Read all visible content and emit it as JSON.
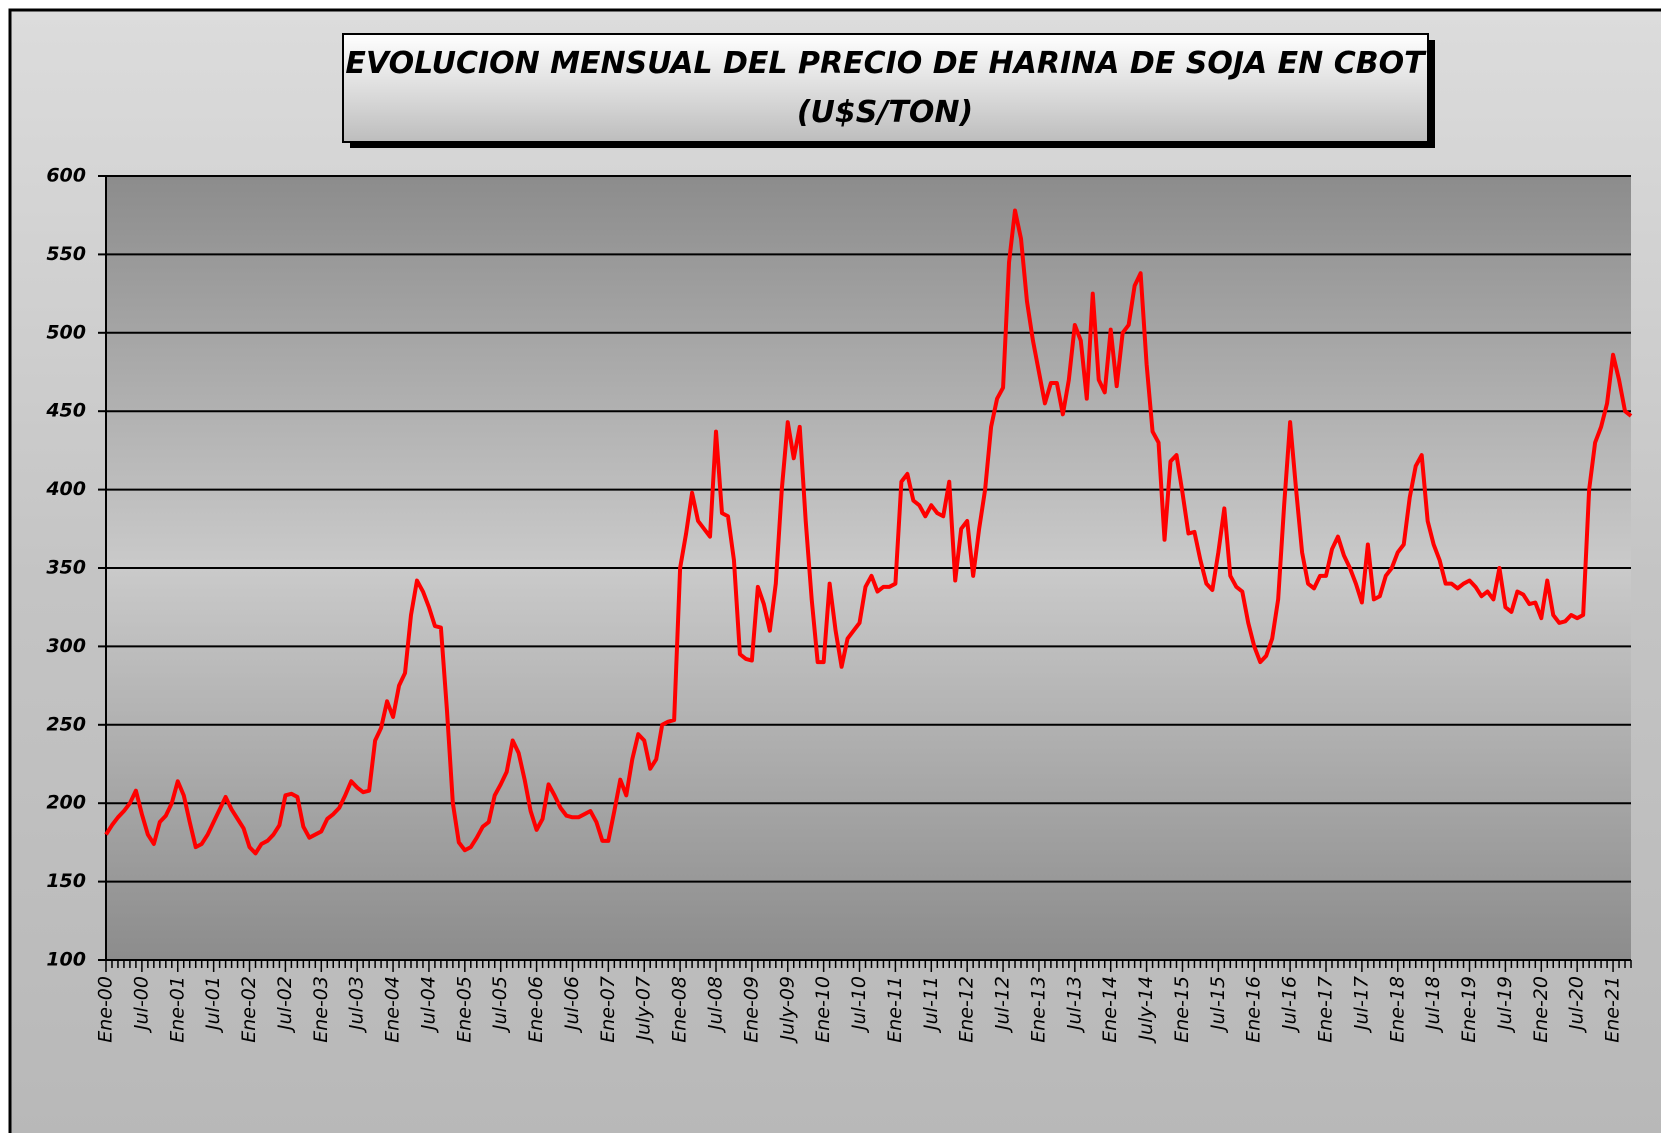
{
  "chart_data": {
    "type": "line",
    "title": "EVOLUCION MENSUAL DEL PRECIO DE HARINA DE SOJA EN CBOT",
    "subtitle": "(U$S/TON)",
    "color": "#ff0000",
    "grid": true,
    "ylim": [
      100,
      600
    ],
    "yticks": [
      100,
      150,
      200,
      250,
      300,
      350,
      400,
      450,
      500,
      550,
      600
    ],
    "categories": [
      "Ene-00",
      null,
      null,
      null,
      null,
      null,
      "Jul-00",
      null,
      null,
      null,
      null,
      null,
      "Ene-01",
      null,
      null,
      null,
      null,
      null,
      "Jul-01",
      null,
      null,
      null,
      null,
      null,
      "Ene-02",
      null,
      null,
      null,
      null,
      null,
      "Jul-02",
      null,
      null,
      null,
      null,
      null,
      "Ene-03",
      null,
      null,
      null,
      null,
      null,
      "Jul-03",
      null,
      null,
      null,
      null,
      null,
      "Ene-04",
      null,
      null,
      null,
      null,
      null,
      "Jul-04",
      null,
      null,
      null,
      null,
      null,
      "Ene-05",
      null,
      null,
      null,
      null,
      null,
      "Jul-05",
      null,
      null,
      null,
      null,
      null,
      "Ene-06",
      null,
      null,
      null,
      null,
      null,
      "Jul-06",
      null,
      null,
      null,
      null,
      null,
      "Ene-07",
      null,
      null,
      null,
      null,
      null,
      "July-07",
      null,
      null,
      null,
      null,
      null,
      "Ene-08",
      null,
      null,
      null,
      null,
      null,
      "Jul-08",
      null,
      null,
      null,
      null,
      null,
      "Ene-09",
      null,
      null,
      null,
      null,
      null,
      "July-09",
      null,
      null,
      null,
      null,
      null,
      "Ene-10",
      null,
      null,
      null,
      null,
      null,
      "Jul-10",
      null,
      null,
      null,
      null,
      null,
      "Ene-11",
      null,
      null,
      null,
      null,
      null,
      "Jul-11",
      null,
      null,
      null,
      null,
      null,
      "Ene-12",
      null,
      null,
      null,
      null,
      null,
      "Jul-12",
      null,
      null,
      null,
      null,
      null,
      "Ene-13",
      null,
      null,
      null,
      null,
      null,
      "Jul-13",
      null,
      null,
      null,
      null,
      null,
      "Ene-14",
      null,
      null,
      null,
      null,
      null,
      "July-14",
      null,
      null,
      null,
      null,
      null,
      "Ene-15",
      null,
      null,
      null,
      null,
      null,
      "Jul-15",
      null,
      null,
      null,
      null,
      null,
      "Ene-16",
      null,
      null,
      null,
      null,
      null,
      "Jul-16",
      null,
      null,
      null,
      null,
      null,
      "Ene-17",
      null,
      null,
      null,
      null,
      null,
      "Jul-17",
      null,
      null,
      null,
      null,
      null,
      "Ene-18",
      null,
      null,
      null,
      null,
      null,
      "Jul-18",
      null,
      null,
      null,
      null,
      null,
      "Ene-19",
      null,
      null,
      null,
      null,
      null,
      "Jul-19",
      null,
      null,
      null,
      null,
      null,
      "Ene-20",
      null,
      null,
      null,
      null,
      null,
      "Jul-20",
      null,
      null,
      null,
      null,
      null,
      "Ene-21",
      null,
      null,
      null
    ],
    "values": [
      180,
      186,
      191,
      195,
      200,
      208,
      193,
      180,
      174,
      188,
      192,
      200,
      214,
      205,
      188,
      172,
      174,
      180,
      188,
      196,
      204,
      196,
      190,
      184,
      172,
      168,
      174,
      176,
      180,
      186,
      205,
      206,
      204,
      185,
      178,
      180,
      182,
      190,
      193,
      197,
      205,
      214,
      210,
      207,
      208,
      240,
      248,
      265,
      255,
      275,
      283,
      320,
      342,
      335,
      325,
      313,
      312,
      260,
      200,
      175,
      170,
      172,
      178,
      185,
      188,
      205,
      212,
      220,
      240,
      232,
      215,
      195,
      183,
      190,
      212,
      205,
      197,
      192,
      191,
      191,
      193,
      195,
      188,
      176,
      176,
      195,
      215,
      205,
      228,
      244,
      240,
      222,
      228,
      250,
      252,
      253,
      350,
      372,
      398,
      380,
      375,
      370,
      437,
      385,
      383,
      355,
      295,
      292,
      291,
      338,
      327,
      310,
      340,
      400,
      443,
      420,
      440,
      380,
      330,
      290,
      290,
      340,
      310,
      287,
      305,
      310,
      315,
      338,
      345,
      335,
      338,
      338,
      340,
      405,
      410,
      393,
      390,
      383,
      390,
      385,
      383,
      405,
      342,
      375,
      380,
      345,
      375,
      400,
      440,
      458,
      465,
      545,
      578,
      560,
      520,
      495,
      475,
      455,
      468,
      468,
      448,
      470,
      505,
      495,
      458,
      525,
      470,
      462,
      502,
      466,
      500,
      505,
      530,
      538,
      480,
      437,
      430,
      368,
      418,
      422,
      398,
      372,
      373,
      355,
      340,
      336,
      360,
      388,
      345,
      338,
      335,
      315,
      300,
      290,
      294,
      305,
      330,
      390,
      443,
      400,
      360,
      340,
      337,
      345,
      345,
      362,
      370,
      358,
      350,
      340,
      328,
      365,
      330,
      332,
      345,
      350,
      360,
      365,
      395,
      415,
      422,
      380,
      365,
      355,
      340,
      340,
      337,
      340,
      342,
      338,
      332,
      335,
      330,
      350,
      325,
      322,
      335,
      333,
      327,
      328,
      318,
      342,
      320,
      315,
      316,
      320,
      318,
      320,
      400,
      430,
      440,
      455,
      486,
      470,
      450,
      447
    ]
  }
}
